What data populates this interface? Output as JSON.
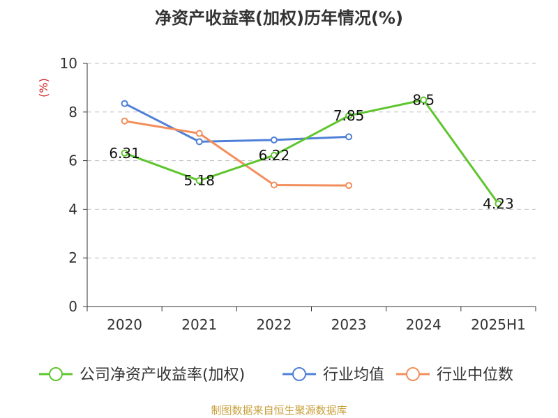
{
  "chart_data": {
    "type": "line",
    "title": "净资产收益率(加权)历年情况(%)",
    "ylabel": "(%)",
    "xlabel": "",
    "categories": [
      "2020",
      "2021",
      "2022",
      "2023",
      "2024",
      "2025H1"
    ],
    "ylim": [
      0,
      10
    ],
    "yticks": [
      0,
      2,
      4,
      6,
      8,
      10
    ],
    "grid": true,
    "legend_position": "bottom",
    "series": [
      {
        "name": "公司净资产收益率(加权)",
        "color": "#5fc52e",
        "values": [
          6.31,
          5.18,
          6.22,
          7.85,
          8.5,
          4.23
        ],
        "labels": [
          "6.31",
          "5.18",
          "6.22",
          "7.85",
          "8.5",
          "4.23"
        ]
      },
      {
        "name": "行业均值",
        "color": "#4f80d8",
        "values": [
          8.35,
          6.78,
          6.85,
          6.98,
          null,
          null
        ]
      },
      {
        "name": "行业中位数",
        "color": "#f28e5c",
        "values": [
          7.63,
          7.12,
          5.0,
          4.98,
          null,
          null
        ]
      }
    ]
  },
  "footer": {
    "source": "制图数据来自恒生聚源数据库"
  }
}
